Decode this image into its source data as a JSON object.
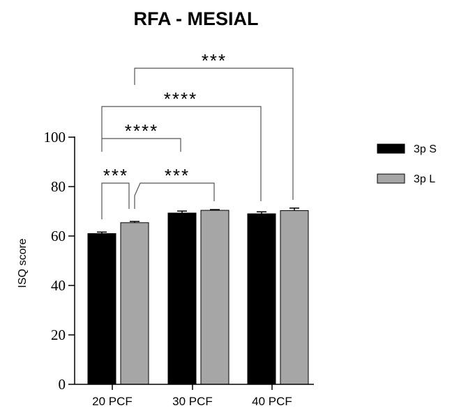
{
  "chart_data": {
    "type": "bar",
    "title": "RFA - MESIAL",
    "xlabel": "",
    "ylabel": "ISQ score",
    "ylim": [
      0,
      100
    ],
    "yticks": [
      "0",
      "20",
      "40",
      "60",
      "80",
      "100"
    ],
    "categories": [
      "20 PCF",
      "30 PCF",
      "40 PCF"
    ],
    "series": [
      {
        "name": "3p S",
        "color": "#000000",
        "values": [
          61,
          69.3,
          69
        ],
        "errors": [
          0.6,
          0.8,
          0.8
        ]
      },
      {
        "name": "3p L",
        "color": "#a6a6a6",
        "values": [
          65.4,
          70.4,
          70.3
        ],
        "errors": [
          0.5,
          0.3,
          1.0
        ]
      }
    ],
    "legend": {
      "position": "right"
    },
    "significance": [
      {
        "from": "20 PCF / 3p S",
        "to": "20 PCF / 3p L",
        "label": "***"
      },
      {
        "from": "20 PCF / 3p L",
        "to": "30 PCF / 3p L",
        "label": "***"
      },
      {
        "from": "20 PCF / 3p S",
        "to": "30 PCF / 3p S",
        "label": "****"
      },
      {
        "from": "20 PCF / 3p S",
        "to": "40 PCF / 3p S",
        "label": "****"
      },
      {
        "from": "20 PCF / 3p L",
        "to": "40 PCF / 3p L",
        "label": "***"
      }
    ]
  }
}
